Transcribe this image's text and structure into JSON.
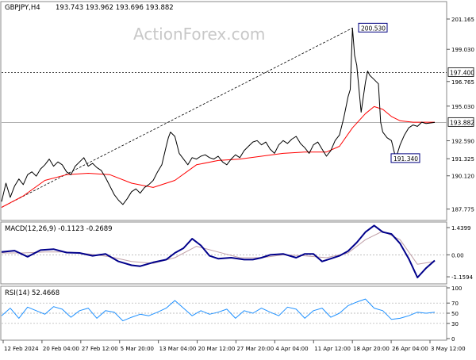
{
  "header": {
    "symbol": "GBPJPY,H4",
    "ohlc": "193.743 193.962 193.696 193.882"
  },
  "watermark": "ActionForex.com",
  "colors": {
    "price": "#000000",
    "sma": "#ff0000",
    "macd": "#00008b",
    "signal": "#c0a0a8",
    "rsi": "#1e90ff",
    "grid": "#808080",
    "level_box": "#000080"
  },
  "chart_data": [
    {
      "type": "line",
      "panel": "price",
      "title": "GBPJPY,H4",
      "ohlc": "193.743 193.962 193.696 193.882",
      "y_ticks": [
        "201.165",
        "199.030",
        "196.765",
        "195.030",
        "192.590",
        "191.325",
        "190.120",
        "187.775"
      ],
      "ylim": [
        187.2,
        201.5
      ],
      "x_ticks": [
        "12 Feb 2024",
        "20 Feb 04:00",
        "27 Feb 12:00",
        "5 Mar 20:00",
        "13 Mar 04:00",
        "20 Mar 12:00",
        "27 Mar 20:00",
        "4 Apr 04:00",
        "11 Apr 12:00",
        "18 Apr 20:00",
        "26 Apr 04:00",
        "3 May 12:00"
      ],
      "levels": [
        {
          "label": "200.530",
          "value": 200.53
        },
        {
          "label": "197.400",
          "value": 197.4
        },
        {
          "label": "193.882",
          "value": 193.882
        },
        {
          "label": "191.340",
          "value": 191.34
        }
      ],
      "trendline": {
        "from": [
          0,
          187.9
        ],
        "to": [
          0.81,
          200.53
        ]
      },
      "series": [
        {
          "type": "line",
          "t": [
            0,
            0.01,
            0.02,
            0.03,
            0.04,
            0.05,
            0.06,
            0.07,
            0.08,
            0.09,
            0.1,
            0.11,
            0.12,
            0.13,
            0.14,
            0.15,
            0.16,
            0.17,
            0.18,
            0.19,
            0.2,
            0.21,
            0.22,
            0.23,
            0.24,
            0.25,
            0.26,
            0.27,
            0.28,
            0.29,
            0.3,
            0.31,
            0.32,
            0.33,
            0.34,
            0.35,
            0.36,
            0.37,
            0.38,
            0.385,
            0.39,
            0.4,
            0.41,
            0.42,
            0.43,
            0.44,
            0.45,
            0.46,
            0.47,
            0.48,
            0.49,
            0.5,
            0.51,
            0.52,
            0.53,
            0.54,
            0.55,
            0.56,
            0.57,
            0.58,
            0.59,
            0.6,
            0.61,
            0.62,
            0.63,
            0.64,
            0.65,
            0.66,
            0.67,
            0.68,
            0.69,
            0.7,
            0.71,
            0.72,
            0.73,
            0.74,
            0.75,
            0.76,
            0.77,
            0.78,
            0.79,
            0.8,
            0.805,
            0.81,
            0.815,
            0.82,
            0.83,
            0.84,
            0.845,
            0.85,
            0.86,
            0.87,
            0.875,
            0.88,
            0.89,
            0.9,
            0.91,
            0.92,
            0.93,
            0.94,
            0.95,
            0.96,
            0.97,
            0.98,
            1.0
          ],
          "values": [
            188.3,
            189.6,
            188.6,
            189.4,
            189.9,
            189.5,
            190.2,
            190.4,
            190.1,
            190.6,
            190.9,
            191.3,
            190.8,
            191.1,
            190.9,
            190.4,
            190.2,
            190.8,
            191.1,
            191.4,
            190.8,
            191.0,
            190.7,
            190.5,
            190.0,
            189.4,
            188.8,
            188.4,
            188.1,
            188.5,
            189.0,
            189.2,
            188.9,
            189.3,
            189.5,
            189.8,
            190.4,
            190.9,
            192.2,
            192.8,
            193.2,
            192.9,
            191.7,
            191.3,
            190.9,
            191.4,
            191.3,
            191.5,
            191.6,
            191.4,
            191.3,
            191.5,
            191.1,
            190.9,
            191.3,
            191.6,
            191.4,
            191.9,
            192.2,
            192.5,
            192.6,
            192.3,
            192.5,
            192.0,
            191.7,
            192.3,
            192.6,
            192.4,
            192.7,
            192.9,
            192.4,
            192.1,
            191.7,
            192.3,
            192.5,
            192.0,
            191.5,
            191.9,
            192.6,
            193.0,
            194.2,
            195.7,
            196.2,
            200.53,
            198.6,
            197.9,
            194.6,
            196.7,
            197.5,
            197.2,
            196.9,
            196.6,
            193.9,
            193.2,
            192.8,
            192.6,
            191.34,
            192.3,
            193.0,
            193.5,
            193.7,
            193.6,
            193.9,
            193.8,
            193.882
          ]
        },
        {
          "type": "line",
          "t": [
            0,
            0.05,
            0.1,
            0.15,
            0.2,
            0.25,
            0.3,
            0.35,
            0.4,
            0.45,
            0.5,
            0.55,
            0.6,
            0.65,
            0.7,
            0.75,
            0.78,
            0.81,
            0.84,
            0.86,
            0.88,
            0.9,
            0.92,
            0.95,
            1.0
          ],
          "values": [
            187.9,
            188.7,
            189.8,
            190.2,
            190.3,
            190.2,
            189.6,
            189.3,
            189.8,
            190.9,
            191.2,
            191.3,
            191.5,
            191.7,
            191.8,
            191.8,
            192.2,
            193.5,
            194.5,
            195.0,
            194.8,
            194.3,
            194.0,
            193.9,
            193.9
          ]
        }
      ]
    },
    {
      "type": "line",
      "panel": "macd",
      "title": "MACD(12,26,9) -0.1123 -0.2689",
      "y_ticks": [
        "1.4399",
        "0.00",
        "-1.1594"
      ],
      "ylim": [
        -1.45,
        1.65
      ],
      "series": [
        {
          "type": "line",
          "t": [
            0,
            0.03,
            0.06,
            0.09,
            0.12,
            0.15,
            0.18,
            0.21,
            0.24,
            0.27,
            0.3,
            0.32,
            0.35,
            0.38,
            0.4,
            0.42,
            0.44,
            0.46,
            0.48,
            0.5,
            0.53,
            0.56,
            0.58,
            0.6,
            0.62,
            0.65,
            0.68,
            0.7,
            0.72,
            0.74,
            0.76,
            0.78,
            0.8,
            0.82,
            0.84,
            0.86,
            0.88,
            0.9,
            0.92,
            0.94,
            0.96,
            0.98,
            1.0
          ],
          "values": [
            0.15,
            0.22,
            -0.1,
            0.25,
            0.3,
            0.12,
            0.1,
            -0.05,
            0.05,
            -0.35,
            -0.55,
            -0.6,
            -0.4,
            -0.25,
            0.1,
            0.35,
            0.85,
            0.5,
            -0.05,
            -0.2,
            -0.15,
            -0.25,
            -0.25,
            -0.15,
            0.0,
            0.05,
            -0.15,
            0.05,
            0.05,
            -0.35,
            -0.2,
            -0.05,
            0.2,
            0.65,
            1.2,
            1.55,
            1.2,
            1.1,
            0.6,
            -0.2,
            -1.2,
            -0.7,
            -0.3
          ]
        },
        {
          "type": "line",
          "t": [
            0,
            0.05,
            0.1,
            0.15,
            0.2,
            0.25,
            0.3,
            0.35,
            0.4,
            0.45,
            0.5,
            0.55,
            0.6,
            0.65,
            0.7,
            0.75,
            0.8,
            0.84,
            0.88,
            0.92,
            0.96,
            1.0
          ],
          "values": [
            0.1,
            0.1,
            0.15,
            0.15,
            0.05,
            -0.1,
            -0.35,
            -0.45,
            -0.15,
            0.45,
            0.15,
            -0.15,
            -0.15,
            0.0,
            -0.05,
            -0.15,
            0.1,
            0.8,
            1.25,
            0.8,
            -0.5,
            -0.35
          ]
        }
      ]
    },
    {
      "type": "line",
      "panel": "rsi",
      "title": "RSI(14) 52.4668",
      "y_ticks": [
        "100",
        "70",
        "50",
        "30",
        "0"
      ],
      "ylim": [
        0,
        100
      ],
      "series": [
        {
          "type": "line",
          "t": [
            0,
            0.02,
            0.04,
            0.06,
            0.08,
            0.1,
            0.12,
            0.14,
            0.16,
            0.18,
            0.2,
            0.22,
            0.24,
            0.26,
            0.28,
            0.3,
            0.32,
            0.34,
            0.36,
            0.38,
            0.4,
            0.42,
            0.44,
            0.46,
            0.48,
            0.5,
            0.52,
            0.54,
            0.56,
            0.58,
            0.6,
            0.62,
            0.64,
            0.66,
            0.68,
            0.7,
            0.72,
            0.74,
            0.76,
            0.78,
            0.8,
            0.82,
            0.84,
            0.86,
            0.88,
            0.9,
            0.92,
            0.94,
            0.96,
            0.98,
            1.0
          ],
          "values": [
            45,
            60,
            40,
            62,
            55,
            48,
            63,
            58,
            42,
            55,
            60,
            40,
            55,
            52,
            35,
            42,
            48,
            45,
            52,
            60,
            75,
            60,
            45,
            55,
            48,
            52,
            58,
            40,
            55,
            50,
            60,
            52,
            45,
            62,
            58,
            40,
            55,
            60,
            42,
            50,
            65,
            72,
            78,
            60,
            55,
            38,
            40,
            45,
            52,
            50,
            52
          ]
        }
      ]
    }
  ]
}
